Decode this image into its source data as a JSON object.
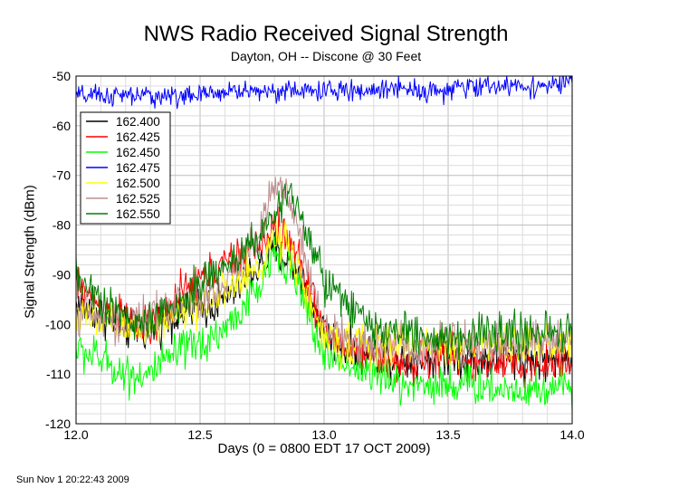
{
  "chart_data": {
    "type": "line",
    "title": "NWS Radio Received Signal Strength",
    "subtitle": "Dayton, OH -- Discone @ 30 Feet",
    "xlabel": "Days (0 = 0800 EDT 17 OCT 2009)",
    "ylabel": "Signal Strength (dBm)",
    "xlim": [
      12.0,
      14.0
    ],
    "ylim": [
      -120,
      -50
    ],
    "xticks": [
      "12.0",
      "12.5",
      "13.0",
      "13.5",
      "14.0"
    ],
    "yticks": [
      "-50",
      "-60",
      "-70",
      "-80",
      "-90",
      "-100",
      "-110",
      "-120"
    ],
    "grid": true,
    "legend_position": "top-left",
    "x": [
      12.0,
      12.1,
      12.2,
      12.3,
      12.4,
      12.5,
      12.6,
      12.7,
      12.75,
      12.8,
      12.85,
      12.9,
      12.95,
      13.0,
      13.1,
      13.2,
      13.3,
      13.4,
      13.5,
      13.6,
      13.7,
      13.8,
      13.9,
      14.0
    ],
    "series": [
      {
        "name": "162.400",
        "color": "#000000",
        "values": [
          -96,
          -98,
          -101,
          -101,
          -98,
          -97,
          -95,
          -90,
          -88,
          -85,
          -87,
          -89,
          -95,
          -102,
          -105,
          -106,
          -107,
          -107,
          -106,
          -107,
          -107,
          -107,
          -107,
          -106
        ]
      },
      {
        "name": "162.425",
        "color": "#ff0000",
        "values": [
          -92,
          -96,
          -99,
          -101,
          -95,
          -91,
          -88,
          -85,
          -84,
          -80,
          -83,
          -87,
          -94,
          -102,
          -105,
          -106,
          -108,
          -108,
          -106,
          -108,
          -108,
          -109,
          -108,
          -107
        ]
      },
      {
        "name": "162.450",
        "color": "#00ff00",
        "values": [
          -105,
          -107,
          -110,
          -110,
          -106,
          -104,
          -101,
          -95,
          -92,
          -85,
          -87,
          -93,
          -100,
          -106,
          -108,
          -110,
          -112,
          -112,
          -112,
          -112,
          -113,
          -113,
          -113,
          -112
        ]
      },
      {
        "name": "162.475",
        "color": "#0000ff",
        "values": [
          -54,
          -54,
          -54,
          -54,
          -54,
          -54,
          -53,
          -53,
          -53,
          -53,
          -53,
          -53,
          -53,
          -53,
          -53,
          -53,
          -52,
          -53,
          -53,
          -52,
          -52,
          -52,
          -52,
          -51
        ]
      },
      {
        "name": "162.500",
        "color": "#ffff00",
        "values": [
          -98,
          -100,
          -101,
          -100,
          -98,
          -96,
          -94,
          -90,
          -88,
          -82,
          -83,
          -89,
          -97,
          -103,
          -104,
          -104,
          -104,
          -104,
          -104,
          -104,
          -104,
          -104,
          -104,
          -104
        ]
      },
      {
        "name": "162.525",
        "color": "#bc8f8f",
        "values": [
          -97,
          -99,
          -100,
          -99,
          -96,
          -94,
          -92,
          -85,
          -80,
          -70,
          -74,
          -82,
          -92,
          -101,
          -103,
          -104,
          -104,
          -104,
          -103,
          -104,
          -104,
          -104,
          -104,
          -104
        ]
      },
      {
        "name": "162.550",
        "color": "#008000",
        "values": [
          -90,
          -95,
          -99,
          -100,
          -96,
          -92,
          -88,
          -84,
          -82,
          -78,
          -73,
          -78,
          -85,
          -91,
          -97,
          -101,
          -102,
          -102,
          -103,
          -102,
          -102,
          -102,
          -102,
          -101
        ]
      }
    ]
  },
  "footer": {
    "timestamp": "Sun Nov  1 20:22:43 2009"
  }
}
